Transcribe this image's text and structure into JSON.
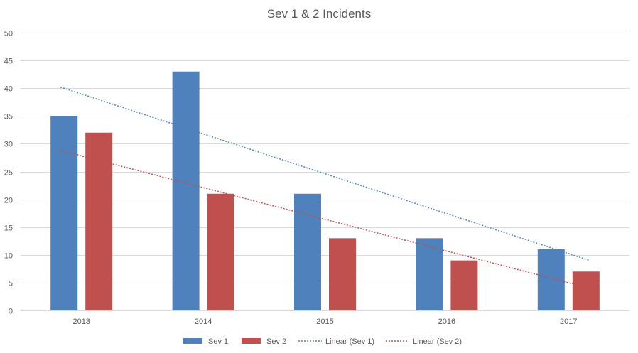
{
  "chart_data": {
    "type": "bar",
    "title": "Sev 1 & 2 Incidents",
    "categories": [
      "2013",
      "2014",
      "2015",
      "2016",
      "2017"
    ],
    "series": [
      {
        "name": "Sev 1",
        "values": [
          35,
          43,
          21,
          13,
          11
        ],
        "color": "#4F81BD"
      },
      {
        "name": "Sev 2",
        "values": [
          32,
          21,
          13,
          9,
          7
        ],
        "color": "#C0504D"
      }
    ],
    "trendlines": [
      {
        "name": "Linear (Sev 1)",
        "type": "linear",
        "of_series": "Sev 1",
        "style": "dotted",
        "color": "#4F81BD"
      },
      {
        "name": "Linear (Sev 2)",
        "type": "linear",
        "of_series": "Sev 2",
        "style": "dotted",
        "color": "#C0504D"
      }
    ],
    "ylim": [
      0,
      50
    ],
    "yticks": [
      0,
      5,
      10,
      15,
      20,
      25,
      30,
      35,
      40,
      45,
      50
    ],
    "grid": true,
    "legend_position": "bottom",
    "xlabel": "",
    "ylabel": ""
  }
}
